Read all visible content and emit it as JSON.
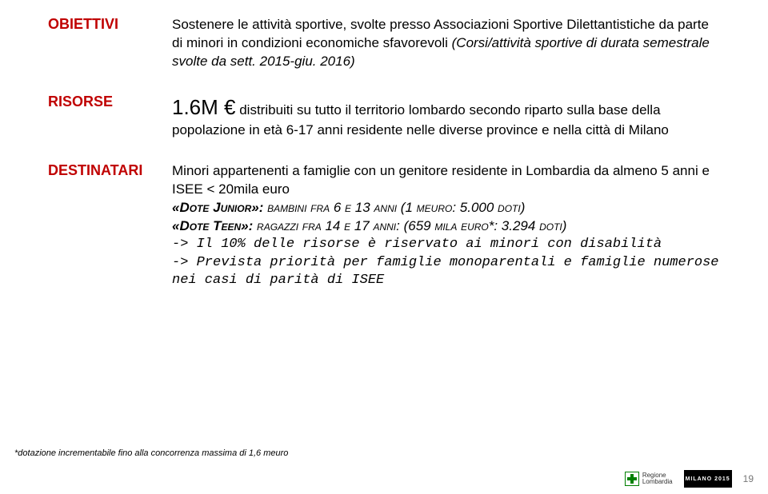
{
  "obiettivi": {
    "label": "OBIETTIVI",
    "text_part1": "Sostenere le attività sportive, svolte presso Associazioni Sportive Dilettantistiche da parte di minori in condizioni economiche sfavorevoli ",
    "text_italic": "(Corsi/attività sportive di durata semestrale svolte da sett. 2015-giu. 2016)"
  },
  "risorse": {
    "label": "RISORSE",
    "amount": "1.6M €",
    "text": " distribuiti su tutto il territorio lombardo secondo riparto sulla base della popolazione in età 6-17 anni residente nelle diverse province e nella città di Milano"
  },
  "destinatari": {
    "label": "DESTINATARI",
    "intro": "Minori appartenenti a famiglie con un genitore residente in Lombardia da almeno 5 anni e ISEE < 20mila euro",
    "dote_junior_prefix": "«Dote Junior»: ",
    "dote_junior_rest": "bambini fra 6 e 13 anni (1 meuro: 5.000 doti)",
    "dote_teen_prefix": "«Dote Teen»: ",
    "dote_teen_rest": "ragazzi fra 14 e 17 anni: (659 mila euro*: 3.294 doti)",
    "mono_line1": "-> Il 10% delle risorse è riservato ai minori con disabilità",
    "mono_line2": "-> Prevista priorità per famiglie monoparentali e famiglie numerose nei casi di parità di ISEE"
  },
  "footnote": "*dotazione incrementabile fino alla concorrenza massima di 1,6 meuro",
  "footer": {
    "page": "19",
    "logo1a": "Regione",
    "logo1b": "Lombardia",
    "logo2": "MILANO 2015"
  }
}
